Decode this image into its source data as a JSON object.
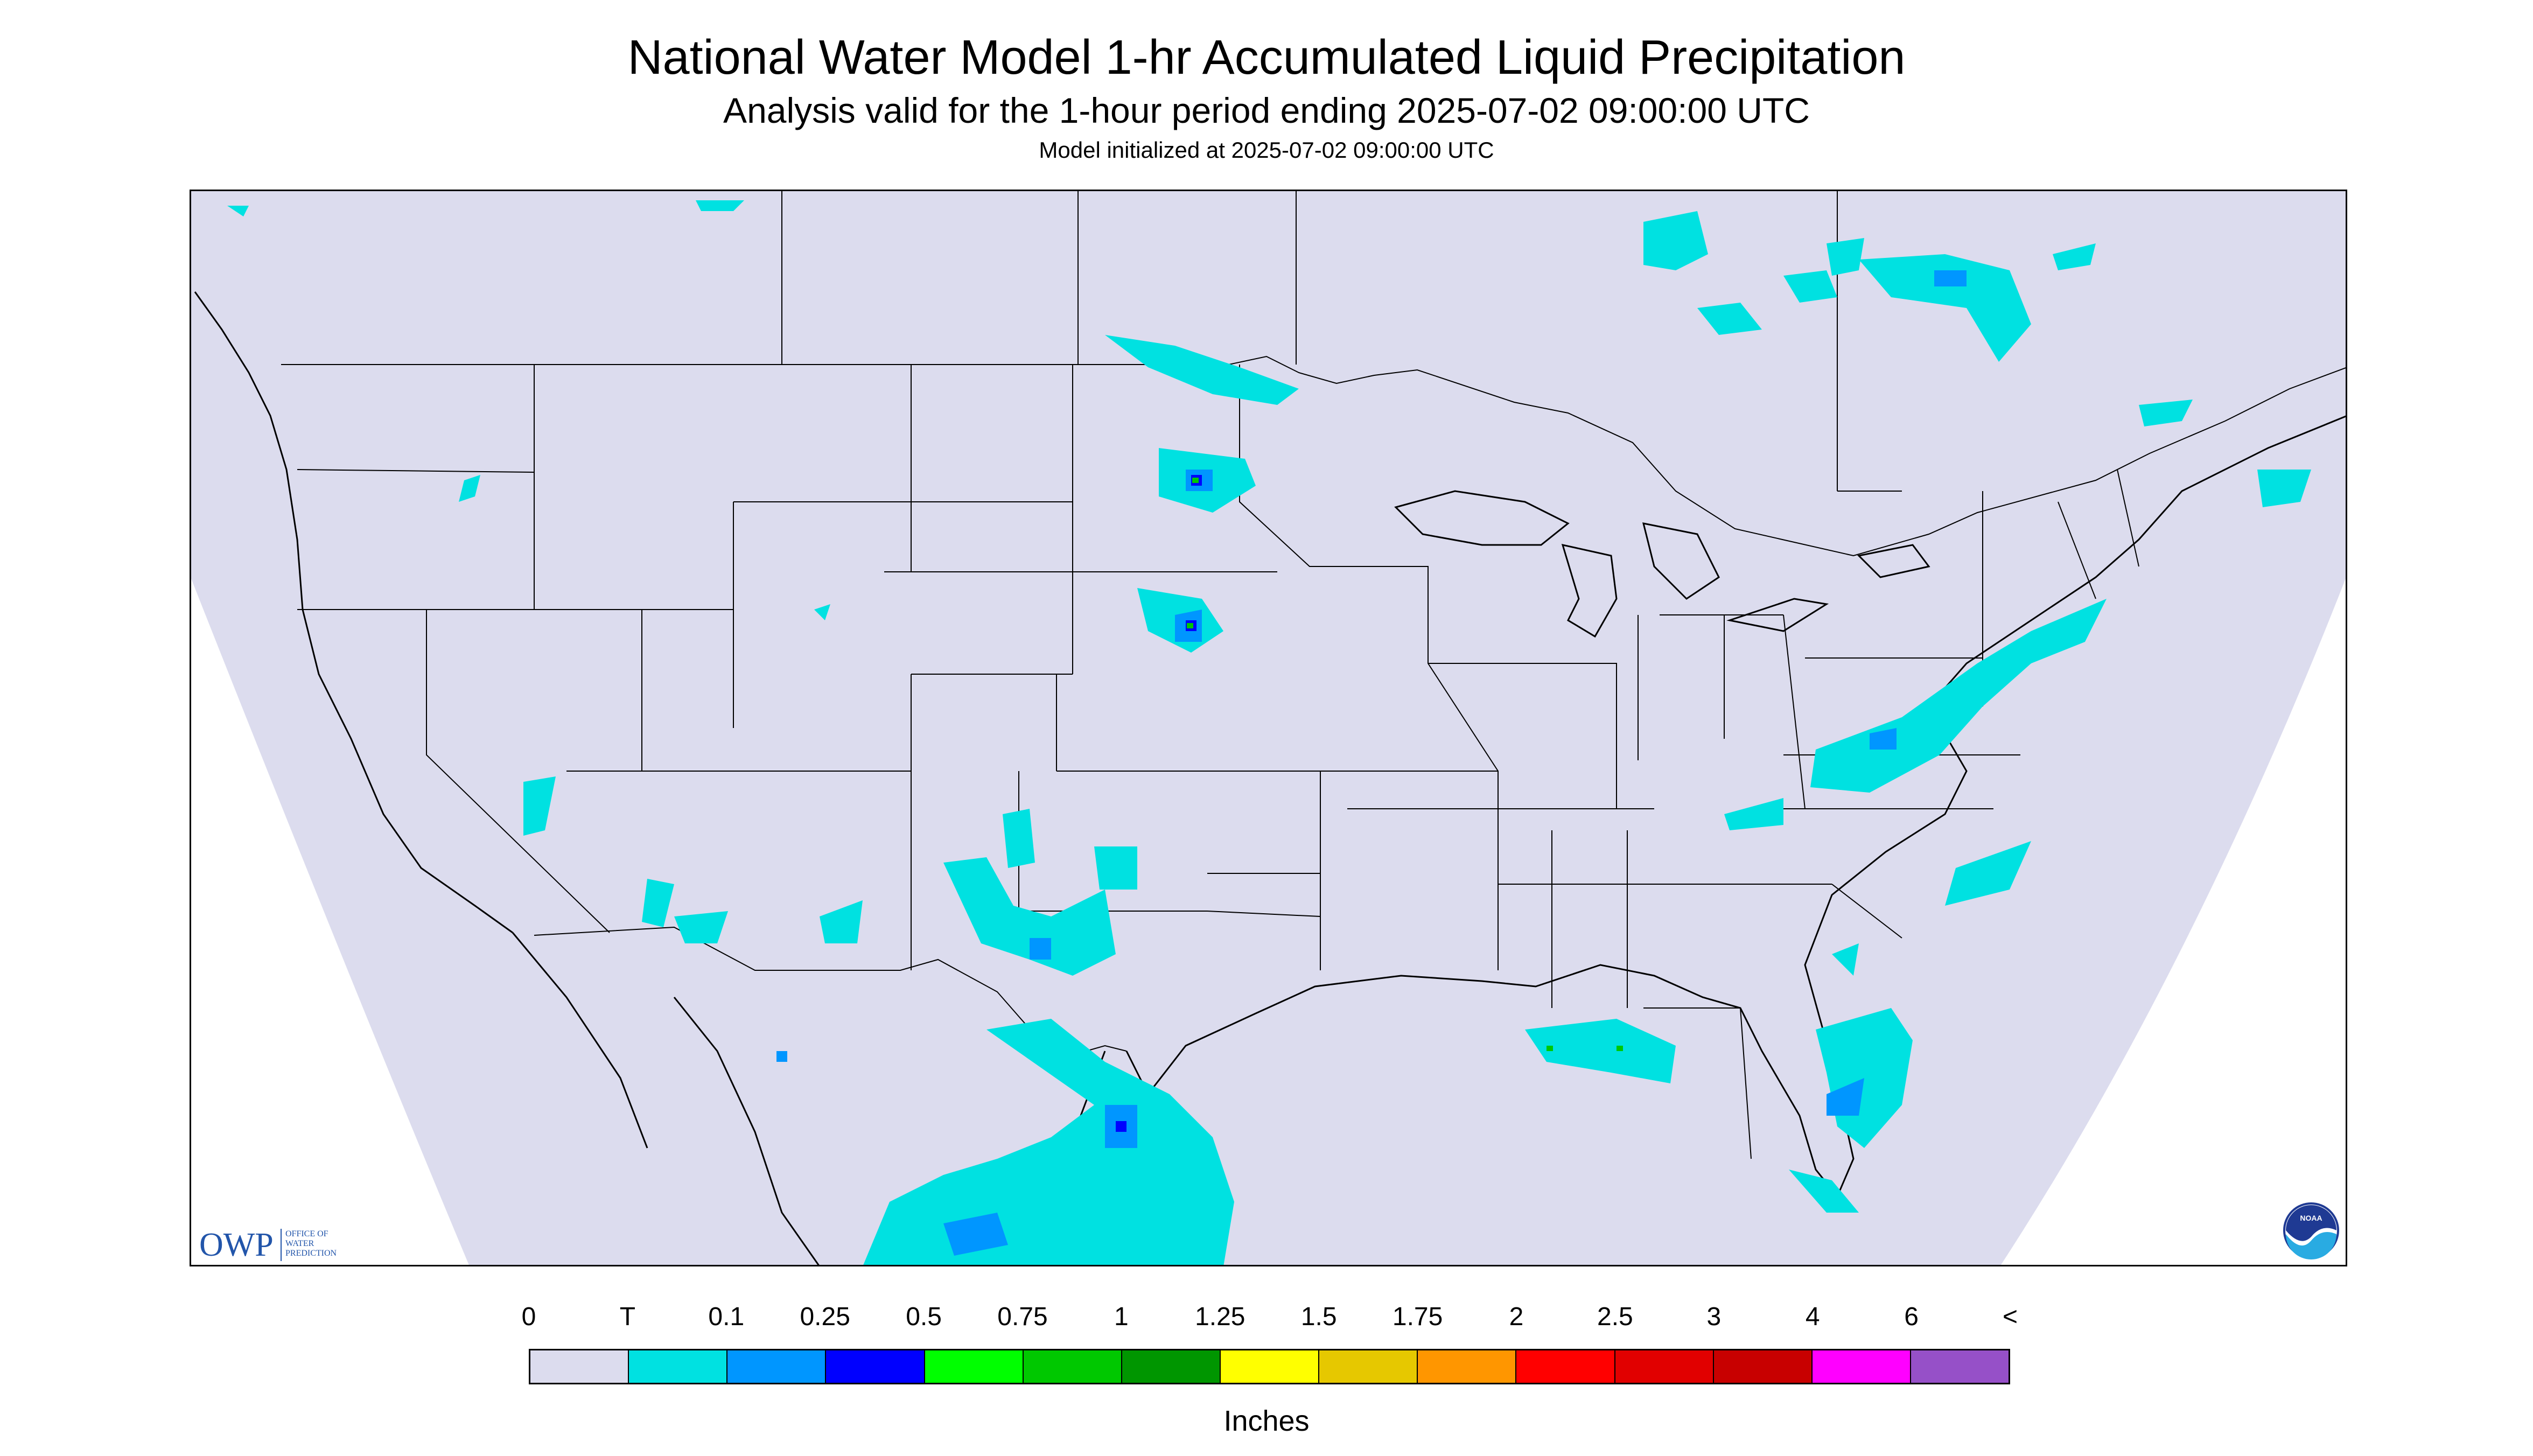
{
  "header": {
    "title": "National Water Model 1-hr Accumulated Liquid Precipitation",
    "subtitle": "Analysis valid for the 1-hour period ending 2025-07-02 09:00:00 UTC",
    "init": "Model initialized at 2025-07-02 09:00:00 UTC"
  },
  "logos": {
    "owp_main": "OWP",
    "owp_line1": "OFFICE OF",
    "owp_line2": "WATER",
    "owp_line3": "PREDICTION",
    "noaa": "NOAA"
  },
  "map": {
    "background": "#dcdcee",
    "outside": "#ffffff",
    "border_color": "#000000"
  },
  "legend": {
    "units": "Inches",
    "labels": [
      "0",
      "T",
      "0.1",
      "0.25",
      "0.5",
      "0.75",
      "1",
      "1.25",
      "1.5",
      "1.75",
      "2",
      "2.5",
      "3",
      "4",
      "6",
      "<"
    ],
    "colors": [
      "#dcdcee",
      "#00e1e1",
      "#0096ff",
      "#0000ff",
      "#00ff00",
      "#00c800",
      "#009600",
      "#ffff00",
      "#e6c800",
      "#ff9600",
      "#ff0000",
      "#e10000",
      "#c80000",
      "#ff00ff",
      "#9650c8"
    ]
  }
}
